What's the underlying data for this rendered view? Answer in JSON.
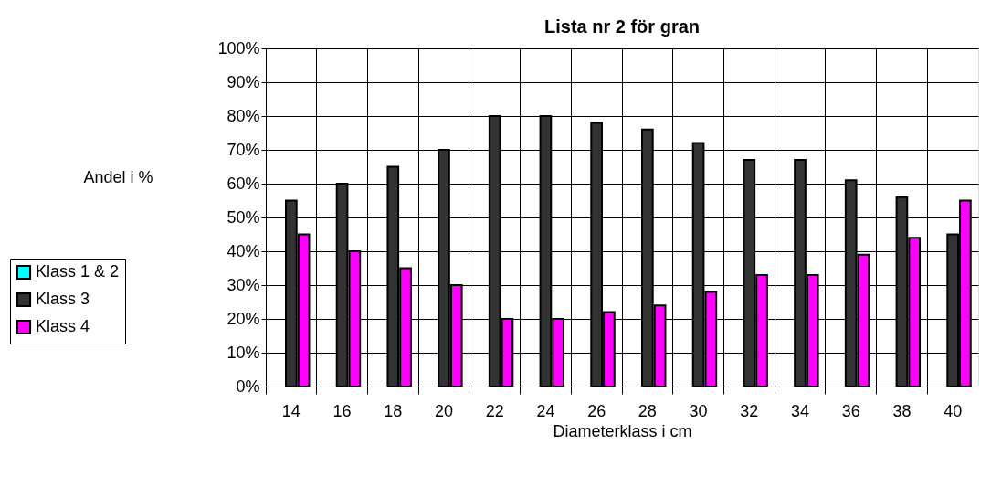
{
  "chart_data": {
    "type": "bar",
    "title": "Lista nr 2 för gran",
    "xlabel": "Diameterklass i cm",
    "ylabel": "Andel i %",
    "categories": [
      "14",
      "16",
      "18",
      "20",
      "22",
      "24",
      "26",
      "28",
      "30",
      "32",
      "34",
      "36",
      "38",
      "40"
    ],
    "series": [
      {
        "name": "Klass 1 & 2",
        "color": "#00ffff",
        "values": [
          null,
          null,
          null,
          null,
          null,
          null,
          null,
          null,
          null,
          null,
          null,
          null,
          null,
          null
        ]
      },
      {
        "name": "Klass 3",
        "color": "#333333",
        "values": [
          55,
          60,
          65,
          70,
          80,
          80,
          78,
          76,
          72,
          67,
          67,
          61,
          56,
          45
        ]
      },
      {
        "name": "Klass 4",
        "color": "#ff00ff",
        "values": [
          45,
          40,
          35,
          30,
          20,
          20,
          22,
          24,
          28,
          33,
          33,
          39,
          44,
          55
        ]
      }
    ],
    "ylim": [
      0,
      100
    ],
    "yticks": [
      {
        "value": 0,
        "label": "0%"
      },
      {
        "value": 10,
        "label": "10%"
      },
      {
        "value": 20,
        "label": "20%"
      },
      {
        "value": 30,
        "label": "30%"
      },
      {
        "value": 40,
        "label": "40%"
      },
      {
        "value": 50,
        "label": "50%"
      },
      {
        "value": 60,
        "label": "60%"
      },
      {
        "value": 70,
        "label": "70%"
      },
      {
        "value": 80,
        "label": "80%"
      },
      {
        "value": 90,
        "label": "90%"
      },
      {
        "value": 100,
        "label": "100%"
      }
    ],
    "grid": true,
    "legend": "left"
  }
}
